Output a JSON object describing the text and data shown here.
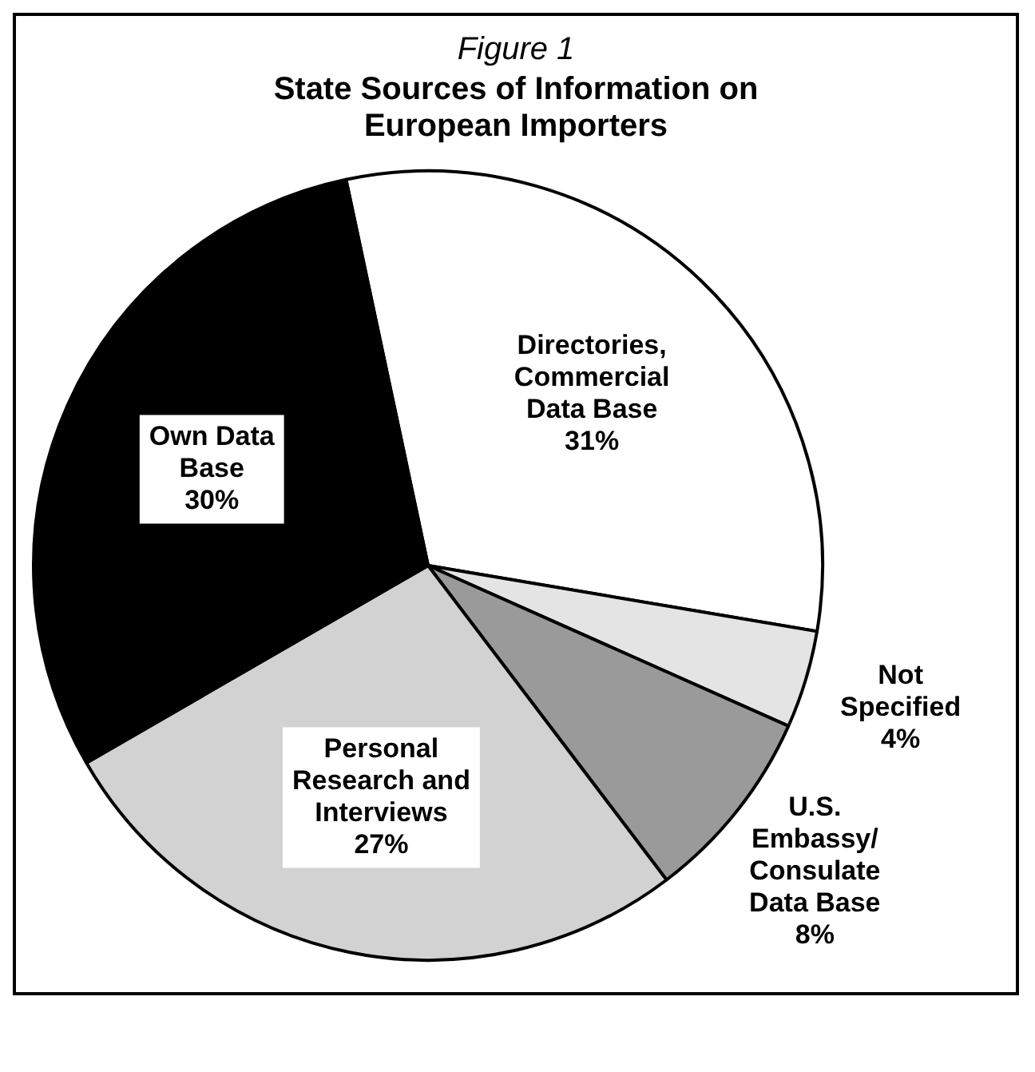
{
  "chart_data": {
    "type": "pie",
    "title": "Figure 1",
    "subtitle": "State Sources of Information on European Importers",
    "categories": [
      "Directories, Commercial Data Base",
      "Not Specified",
      "U.S. Embassy/ Consulate Data Base",
      "Personal Research and Interviews",
      "Own Data Base"
    ],
    "values": [
      31,
      4,
      8,
      27,
      30
    ],
    "colors": [
      "#ffffff",
      "#e4e4e4",
      "#9a9a9a",
      "#d2d2d2",
      "#000000"
    ],
    "value_labels": [
      "31%",
      "4%",
      "8%",
      "27%",
      "30%"
    ],
    "legend": false
  }
}
